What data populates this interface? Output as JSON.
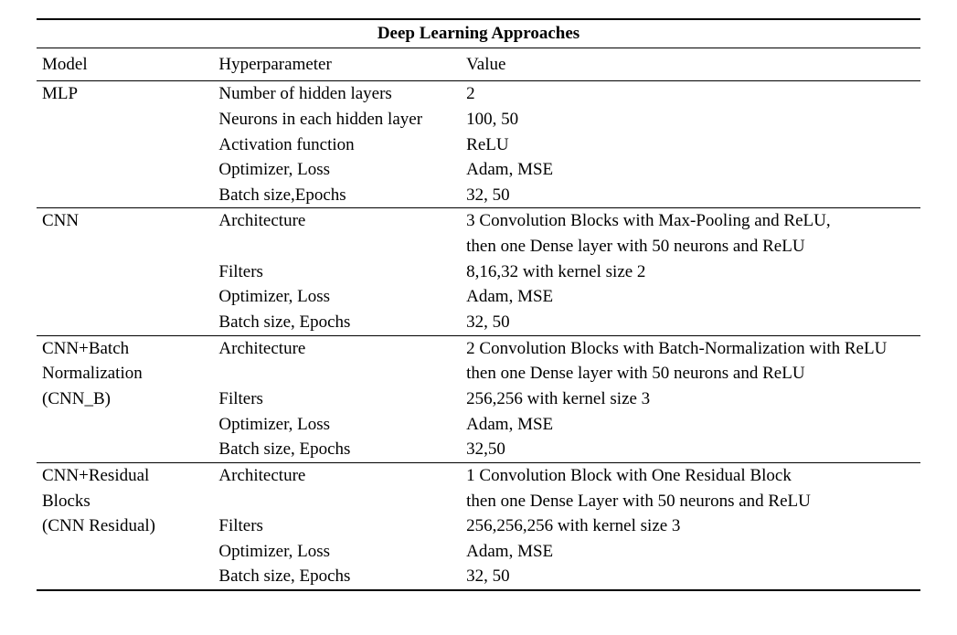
{
  "table": {
    "type": "table",
    "title": "Deep Learning Approaches",
    "font_family": "Times New Roman",
    "title_fontsize": 19,
    "cell_fontsize": 19,
    "text_color": "#000000",
    "background_color": "#ffffff",
    "rule_heavy_color": "#000000",
    "rule_light_color": "#000000",
    "columns": {
      "model": {
        "label": "Model",
        "width_pct": 20,
        "align": "left"
      },
      "hparam": {
        "label": "Hyperparameter",
        "width_pct": 28,
        "align": "left"
      },
      "value": {
        "label": "Value",
        "width_pct": 52,
        "align": "left"
      }
    },
    "sections": {
      "mlp": {
        "model_lines": [
          "MLP"
        ],
        "rows": [
          {
            "hparam": "Number of hidden layers",
            "value": "2"
          },
          {
            "hparam": "Neurons in each hidden layer",
            "value": "100, 50"
          },
          {
            "hparam": "Activation function",
            "value": "ReLU"
          },
          {
            "hparam": "Optimizer, Loss",
            "value": "Adam, MSE"
          },
          {
            "hparam": "Batch size,Epochs",
            "value": "32, 50"
          }
        ]
      },
      "cnn": {
        "model_lines": [
          "CNN"
        ],
        "rows": [
          {
            "hparam": "Architecture",
            "value": "3 Convolution Blocks with Max-Pooling and ReLU,"
          },
          {
            "hparam": "",
            "value": "then one Dense layer with 50 neurons and ReLU"
          },
          {
            "hparam": "Filters",
            "value": "8,16,32 with kernel size 2"
          },
          {
            "hparam": "Optimizer, Loss",
            "value": "Adam, MSE"
          },
          {
            "hparam": "Batch size, Epochs",
            "value": "32, 50"
          }
        ]
      },
      "cnn_b": {
        "model_lines": [
          "CNN+Batch",
          "Normalization",
          "(CNN_B)"
        ],
        "rows": [
          {
            "hparam": "Architecture",
            "value": "2 Convolution Blocks with Batch-Normalization with ReLU"
          },
          {
            "hparam": "",
            "value": "then one Dense layer with 50 neurons and ReLU"
          },
          {
            "hparam": "Filters",
            "value": "256,256 with kernel size 3"
          },
          {
            "hparam": "Optimizer, Loss",
            "value": "Adam, MSE"
          },
          {
            "hparam": "Batch size, Epochs",
            "value": "32,50"
          }
        ]
      },
      "cnn_res": {
        "model_lines": [
          "CNN+Residual",
          "Blocks",
          "(CNN Residual)"
        ],
        "rows": [
          {
            "hparam": "Architecture",
            "value": "1 Convolution Block with One Residual Block"
          },
          {
            "hparam": "",
            "value": "then one Dense Layer with 50 neurons and ReLU"
          },
          {
            "hparam": "Filters",
            "value": "256,256,256 with kernel size 3"
          },
          {
            "hparam": "Optimizer, Loss",
            "value": "Adam, MSE"
          },
          {
            "hparam": "Batch size, Epochs",
            "value": "32, 50"
          }
        ]
      }
    }
  }
}
